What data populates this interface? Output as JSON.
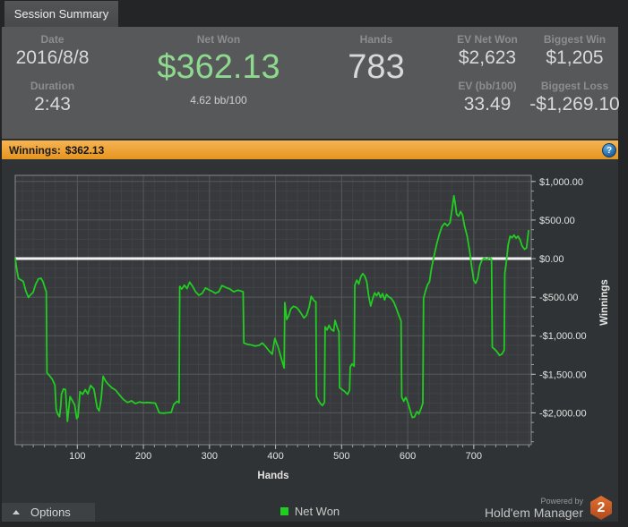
{
  "tab_bar": {
    "tab_label": "Session Summary"
  },
  "header": {
    "stats": {
      "date_label": "Date",
      "date": "2016/8/8",
      "duration_label": "Duration",
      "duration": "2:43",
      "net_won_label": "Net Won",
      "net_won": "$362.13",
      "net_won_sub": "4.62 bb/100",
      "hands_label": "Hands",
      "hands": "783",
      "ev_net_won_label": "EV Net Won",
      "ev_net_won": "$2,623",
      "ev_bb_label": "EV (bb/100)",
      "ev_bb": "33.49",
      "biggest_win_label": "Biggest Win",
      "biggest_win": "$1,205",
      "biggest_loss_label": "Biggest Loss",
      "biggest_loss": "-$1,269.10"
    }
  },
  "winnings_bar": {
    "label": "Winnings:",
    "value": "$362.13",
    "help_icon_glyph": "?"
  },
  "chart_data": {
    "type": "line",
    "title": "Winnings: $362.13",
    "xlabel": "Hands",
    "ylabel": "Winnings",
    "xlim": [
      6,
      787
    ],
    "ylim": [
      -2413,
      1079
    ],
    "x_ticks": [
      100,
      200,
      300,
      400,
      500,
      600,
      700
    ],
    "y_ticks": [
      {
        "value": 1000,
        "label": "$1,000.00"
      },
      {
        "value": 500,
        "label": "$500.00"
      },
      {
        "value": 0,
        "label": "$0.00"
      },
      {
        "value": -500,
        "label": "-$500.00"
      },
      {
        "value": -1000,
        "label": "-$1,000.00"
      },
      {
        "value": -1500,
        "label": "-$1,500.00"
      },
      {
        "value": -2000,
        "label": "-$2,000.00"
      }
    ],
    "grid": "minor+major",
    "legend_position": "bottom",
    "zero_line": {
      "value": 0,
      "color": "#f2f2f2"
    },
    "series": [
      {
        "name": "Net Won",
        "color": "#21cd21",
        "points": [
          [
            6,
            0
          ],
          [
            9,
            -170
          ],
          [
            11,
            -260
          ],
          [
            14,
            -275
          ],
          [
            18,
            -295
          ],
          [
            22,
            -420
          ],
          [
            26,
            -505
          ],
          [
            29,
            -470
          ],
          [
            33,
            -440
          ],
          [
            37,
            -330
          ],
          [
            41,
            -265
          ],
          [
            45,
            -255
          ],
          [
            48,
            -300
          ],
          [
            51,
            -380
          ],
          [
            53,
            -430
          ],
          [
            54,
            -1480
          ],
          [
            58,
            -1520
          ],
          [
            62,
            -1565
          ],
          [
            66,
            -1640
          ],
          [
            68,
            -1950
          ],
          [
            70,
            -2010
          ],
          [
            73,
            -2050
          ],
          [
            75,
            -1900
          ],
          [
            76,
            -1760
          ],
          [
            79,
            -1690
          ],
          [
            82,
            -1700
          ],
          [
            85,
            -2110
          ],
          [
            87,
            -1950
          ],
          [
            89,
            -1790
          ],
          [
            93,
            -1850
          ],
          [
            96,
            -1900
          ],
          [
            99,
            -2075
          ],
          [
            101,
            -2050
          ],
          [
            104,
            -1725
          ],
          [
            108,
            -1760
          ],
          [
            112,
            -1700
          ],
          [
            116,
            -1755
          ],
          [
            120,
            -1645
          ],
          [
            125,
            -1690
          ],
          [
            130,
            -1935
          ],
          [
            133,
            -1975
          ],
          [
            136,
            -1820
          ],
          [
            139,
            -1525
          ],
          [
            143,
            -1590
          ],
          [
            148,
            -1640
          ],
          [
            153,
            -1680
          ],
          [
            158,
            -1705
          ],
          [
            164,
            -1770
          ],
          [
            170,
            -1830
          ],
          [
            176,
            -1865
          ],
          [
            182,
            -1845
          ],
          [
            188,
            -1880
          ],
          [
            194,
            -1860
          ],
          [
            200,
            -1870
          ],
          [
            206,
            -1865
          ],
          [
            212,
            -1870
          ],
          [
            218,
            -1875
          ],
          [
            224,
            -2000
          ],
          [
            230,
            -2005
          ],
          [
            236,
            -2000
          ],
          [
            242,
            -1995
          ],
          [
            246,
            -1890
          ],
          [
            251,
            -1850
          ],
          [
            254,
            -1870
          ],
          [
            255,
            -360
          ],
          [
            258,
            -395
          ],
          [
            262,
            -345
          ],
          [
            266,
            -390
          ],
          [
            270,
            -305
          ],
          [
            274,
            -355
          ],
          [
            279,
            -430
          ],
          [
            284,
            -475
          ],
          [
            289,
            -450
          ],
          [
            294,
            -380
          ],
          [
            299,
            -405
          ],
          [
            304,
            -425
          ],
          [
            309,
            -450
          ],
          [
            314,
            -430
          ],
          [
            319,
            -350
          ],
          [
            325,
            -375
          ],
          [
            331,
            -395
          ],
          [
            337,
            -430
          ],
          [
            343,
            -410
          ],
          [
            349,
            -425
          ],
          [
            351,
            -430
          ],
          [
            352,
            -1095
          ],
          [
            357,
            -1110
          ],
          [
            363,
            -1120
          ],
          [
            369,
            -1135
          ],
          [
            375,
            -1125
          ],
          [
            380,
            -1095
          ],
          [
            385,
            -1140
          ],
          [
            390,
            -1195
          ],
          [
            395,
            -1240
          ],
          [
            399,
            -1035
          ],
          [
            404,
            -1150
          ],
          [
            409,
            -1300
          ],
          [
            413,
            -1420
          ],
          [
            414,
            -570
          ],
          [
            417,
            -790
          ],
          [
            420,
            -740
          ],
          [
            423,
            -655
          ],
          [
            427,
            -620
          ],
          [
            431,
            -630
          ],
          [
            435,
            -665
          ],
          [
            439,
            -715
          ],
          [
            443,
            -770
          ],
          [
            447,
            -735
          ],
          [
            451,
            -625
          ],
          [
            454,
            -490
          ],
          [
            458,
            -545
          ],
          [
            461,
            -560
          ],
          [
            462,
            -1790
          ],
          [
            465,
            -1840
          ],
          [
            468,
            -1880
          ],
          [
            471,
            -1905
          ],
          [
            474,
            -1865
          ],
          [
            475,
            -885
          ],
          [
            478,
            -925
          ],
          [
            481,
            -865
          ],
          [
            484,
            -915
          ],
          [
            488,
            -940
          ],
          [
            490,
            -800
          ],
          [
            493,
            -885
          ],
          [
            496,
            -950
          ],
          [
            497,
            -1675
          ],
          [
            501,
            -1700
          ],
          [
            505,
            -1725
          ],
          [
            509,
            -1760
          ],
          [
            512,
            -1705
          ],
          [
            513,
            -1405
          ],
          [
            516,
            -1365
          ],
          [
            519,
            -1395
          ],
          [
            520,
            -345
          ],
          [
            523,
            -280
          ],
          [
            526,
            -330
          ],
          [
            529,
            -235
          ],
          [
            532,
            -195
          ],
          [
            535,
            -225
          ],
          [
            538,
            -300
          ],
          [
            541,
            -490
          ],
          [
            544,
            -615
          ],
          [
            547,
            -520
          ],
          [
            550,
            -445
          ],
          [
            553,
            -480
          ],
          [
            556,
            -440
          ],
          [
            559,
            -505
          ],
          [
            562,
            -455
          ],
          [
            565,
            -535
          ],
          [
            568,
            -465
          ],
          [
            571,
            -495
          ],
          [
            575,
            -515
          ],
          [
            579,
            -565
          ],
          [
            583,
            -650
          ],
          [
            587,
            -745
          ],
          [
            590,
            -810
          ],
          [
            591,
            -1795
          ],
          [
            594,
            -1850
          ],
          [
            597,
            -1800
          ],
          [
            600,
            -1860
          ],
          [
            603,
            -1945
          ],
          [
            607,
            -2060
          ],
          [
            610,
            -2055
          ],
          [
            614,
            -1985
          ],
          [
            617,
            -2015
          ],
          [
            620,
            -1950
          ],
          [
            623,
            -1875
          ],
          [
            624,
            -515
          ],
          [
            627,
            -420
          ],
          [
            630,
            -340
          ],
          [
            633,
            -300
          ],
          [
            636,
            -130
          ],
          [
            640,
            40
          ],
          [
            644,
            190
          ],
          [
            648,
            320
          ],
          [
            652,
            415
          ],
          [
            656,
            460
          ],
          [
            660,
            425
          ],
          [
            664,
            465
          ],
          [
            667,
            630
          ],
          [
            670,
            815
          ],
          [
            672,
            705
          ],
          [
            674,
            575
          ],
          [
            677,
            550
          ],
          [
            680,
            610
          ],
          [
            683,
            565
          ],
          [
            686,
            425
          ],
          [
            690,
            290
          ],
          [
            694,
            85
          ],
          [
            697,
            -115
          ],
          [
            700,
            -280
          ],
          [
            703,
            -320
          ],
          [
            706,
            -255
          ],
          [
            709,
            -95
          ],
          [
            712,
            -25
          ],
          [
            716,
            5
          ],
          [
            720,
            -15
          ],
          [
            724,
            15
          ],
          [
            727,
            -10
          ],
          [
            728,
            -1150
          ],
          [
            731,
            -1170
          ],
          [
            735,
            -1205
          ],
          [
            739,
            -1255
          ],
          [
            743,
            -1235
          ],
          [
            746,
            -1185
          ],
          [
            747,
            -190
          ],
          [
            749,
            -65
          ],
          [
            752,
            175
          ],
          [
            755,
            290
          ],
          [
            758,
            270
          ],
          [
            761,
            305
          ],
          [
            764,
            265
          ],
          [
            767,
            290
          ],
          [
            770,
            245
          ],
          [
            773,
            165
          ],
          [
            777,
            120
          ],
          [
            780,
            140
          ],
          [
            783,
            362
          ]
        ]
      }
    ]
  },
  "footer": {
    "options_label": "Options",
    "powered_by": "Powered by",
    "brand": "Hold'em Manager",
    "brand_badge": "2"
  },
  "colors": {
    "orange_bar": "#eda33b",
    "green_value": "#8fd98f",
    "chart_line": "#21cd21",
    "zero_line": "#f2f2f2",
    "help_blue": "#2a76b5",
    "badge_orange": "#c65722",
    "header_bg": "#56585a",
    "chart_bg": "#303335"
  }
}
